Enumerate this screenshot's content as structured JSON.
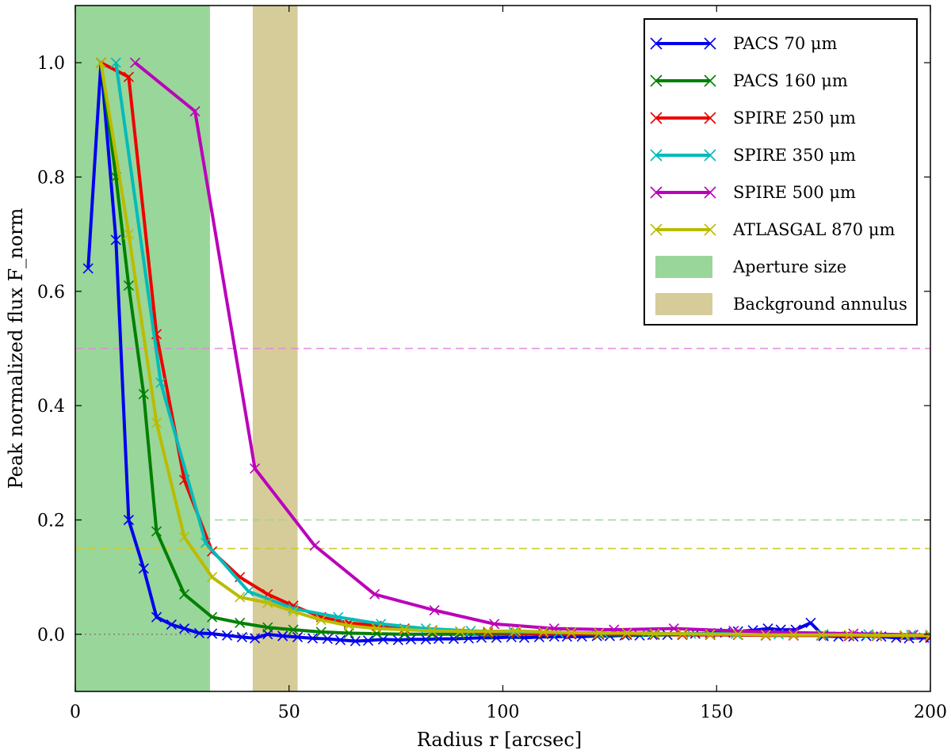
{
  "chart_data": {
    "type": "line",
    "xlabel": "Radius  r [arcsec]",
    "ylabel": "Peak normalized flux   F_norm",
    "xlim": [
      0,
      200
    ],
    "ylim": [
      -0.1,
      1.1
    ],
    "xticks": [
      0,
      50,
      100,
      150,
      200
    ],
    "xtick_labels": [
      "0",
      "50",
      "100",
      "150",
      "200"
    ],
    "yticks": [
      0.0,
      0.2,
      0.4,
      0.6,
      0.8,
      1.0
    ],
    "ytick_labels": [
      "0.0",
      "0.2",
      "0.4",
      "0.6",
      "0.8",
      "1.0"
    ],
    "grid": false,
    "legend_position": "top-right",
    "shaded_regions": [
      {
        "name": "Aperture size",
        "x0": 0,
        "x1": 31.5,
        "color": "#99d699"
      },
      {
        "name": "Background annulus",
        "x0": 41.5,
        "x1": 52,
        "color": "#d6cc99"
      }
    ],
    "hlines": [
      {
        "y": 0.5,
        "color": "#e08ae0",
        "dash": "dashed"
      },
      {
        "y": 0.2,
        "color": "#99d699",
        "dash": "dashed"
      },
      {
        "y": 0.15,
        "color": "#cccc33",
        "dash": "dashed"
      },
      {
        "y": 0.0,
        "color": "#8a7f8a",
        "dash": "dotted"
      }
    ],
    "series": [
      {
        "name": "PACS 70  μm",
        "color": "#0000ee",
        "x": [
          3,
          6,
          9.5,
          12.5,
          16,
          19,
          22.5,
          25.5,
          29,
          32,
          35.5,
          39,
          42,
          45,
          48.5,
          52,
          55.5,
          59,
          62,
          65.5,
          68.5,
          72,
          75.5,
          78.5,
          82,
          85,
          88.5,
          92,
          95,
          98.5,
          102,
          105,
          108.5,
          112,
          115,
          118.5,
          122,
          125,
          128.5,
          132,
          135,
          138.5,
          142,
          145,
          148.5,
          152,
          155,
          158.5,
          162,
          165,
          168.5,
          172,
          175,
          178.5,
          182,
          185,
          188.5,
          192,
          195,
          198.5,
          200
        ],
        "y": [
          0.64,
          1.0,
          0.69,
          0.2,
          0.115,
          0.03,
          0.017,
          0.01,
          0.002,
          0.001,
          -0.002,
          -0.005,
          -0.007,
          0.0,
          -0.003,
          -0.005,
          -0.007,
          -0.008,
          -0.01,
          -0.012,
          -0.011,
          -0.009,
          -0.01,
          -0.009,
          -0.009,
          -0.008,
          -0.008,
          -0.007,
          -0.006,
          -0.006,
          -0.005,
          -0.006,
          -0.005,
          -0.004,
          -0.004,
          -0.004,
          -0.003,
          -0.003,
          -0.002,
          -0.002,
          -0.001,
          -0.001,
          0.0,
          0.001,
          0.002,
          0.003,
          0.005,
          0.007,
          0.01,
          0.008,
          0.008,
          0.02,
          -0.003,
          -0.004,
          -0.004,
          -0.003,
          -0.004,
          -0.006,
          -0.007,
          -0.006,
          -0.006
        ]
      },
      {
        "name": "PACS 160  μm",
        "color": "#008000",
        "x": [
          6,
          9.5,
          12.5,
          16,
          19,
          25.5,
          32,
          38.5,
          45,
          51,
          57.5,
          64,
          70.5,
          77,
          83.5,
          90,
          96.5,
          103,
          109.5,
          116,
          122.5,
          129,
          135.5,
          142,
          148.5,
          155,
          161.5,
          168,
          174.5,
          181,
          187.5,
          194,
          200
        ],
        "y": [
          1.0,
          0.8,
          0.61,
          0.42,
          0.18,
          0.07,
          0.03,
          0.02,
          0.012,
          0.008,
          0.004,
          0.002,
          0.001,
          0.0,
          0.0,
          0.0,
          0.0,
          0.0,
          0.0,
          0.0,
          -0.001,
          -0.001,
          -0.001,
          -0.001,
          -0.001,
          -0.001,
          -0.002,
          -0.002,
          -0.002,
          -0.002,
          -0.002,
          -0.002,
          -0.003
        ]
      },
      {
        "name": "SPIRE 250  μm",
        "color": "#ee0000",
        "x": [
          6,
          12.5,
          19,
          25.5,
          32,
          38.5,
          45,
          51,
          57.5,
          64,
          70.5,
          77,
          83.5,
          90,
          96.5,
          103,
          109.5,
          116,
          122.5,
          129,
          135.5,
          142,
          148.5,
          155,
          161.5,
          168,
          174.5,
          181,
          187.5,
          194,
          200
        ],
        "y": [
          1.0,
          0.975,
          0.525,
          0.27,
          0.145,
          0.1,
          0.07,
          0.05,
          0.03,
          0.02,
          0.015,
          0.01,
          0.007,
          0.005,
          0.003,
          0.002,
          0.001,
          0.0,
          0.0,
          0.0,
          0.0,
          -0.001,
          -0.001,
          -0.001,
          -0.002,
          -0.002,
          -0.002,
          -0.003,
          -0.003,
          -0.003,
          -0.004
        ]
      },
      {
        "name": "SPIRE 350  μm",
        "color": "#00bbbb",
        "x": [
          9.5,
          20,
          30.5,
          40.5,
          51,
          61.5,
          71.5,
          82,
          92.5,
          102.5,
          113,
          123.5,
          133.5,
          144,
          154.5,
          164.5,
          175,
          185.5,
          195.5,
          200
        ],
        "y": [
          1.0,
          0.44,
          0.16,
          0.075,
          0.045,
          0.03,
          0.018,
          0.01,
          0.006,
          0.004,
          0.003,
          0.002,
          0.002,
          0.001,
          0.001,
          0.0,
          0.0,
          0.0,
          -0.001,
          -0.001
        ]
      },
      {
        "name": "SPIRE 500  μm",
        "color": "#bb00bb",
        "x": [
          14,
          28,
          42,
          56,
          70,
          84,
          98,
          112,
          126,
          140,
          154,
          168,
          182,
          196,
          200
        ],
        "y": [
          1.0,
          0.915,
          0.29,
          0.155,
          0.07,
          0.042,
          0.018,
          0.01,
          0.008,
          0.01,
          0.006,
          0.003,
          0.001,
          -0.001,
          -0.002
        ]
      },
      {
        "name": "ATLASGAL 870 μm",
        "color": "#bbbb00",
        "x": [
          6,
          12.5,
          19,
          25.5,
          32,
          38.5,
          45,
          51,
          57.5,
          64,
          70.5,
          77,
          83.5,
          90,
          96.5,
          103,
          109.5,
          116,
          122.5,
          129,
          135.5,
          142,
          148.5,
          155,
          161.5,
          168,
          174.5,
          181,
          187.5,
          194,
          200
        ],
        "y": [
          1.0,
          0.7,
          0.37,
          0.17,
          0.1,
          0.065,
          0.055,
          0.04,
          0.025,
          0.015,
          0.01,
          0.008,
          0.006,
          0.005,
          0.005,
          0.006,
          0.004,
          0.003,
          0.002,
          0.002,
          0.001,
          0.001,
          0.0,
          0.0,
          -0.001,
          -0.001,
          -0.001,
          -0.001,
          -0.002,
          -0.002,
          -0.002
        ]
      }
    ],
    "legend_patches": [
      {
        "name": "Aperture size",
        "color": "#99d699"
      },
      {
        "name": "Background annulus",
        "color": "#d6cc99"
      }
    ]
  }
}
